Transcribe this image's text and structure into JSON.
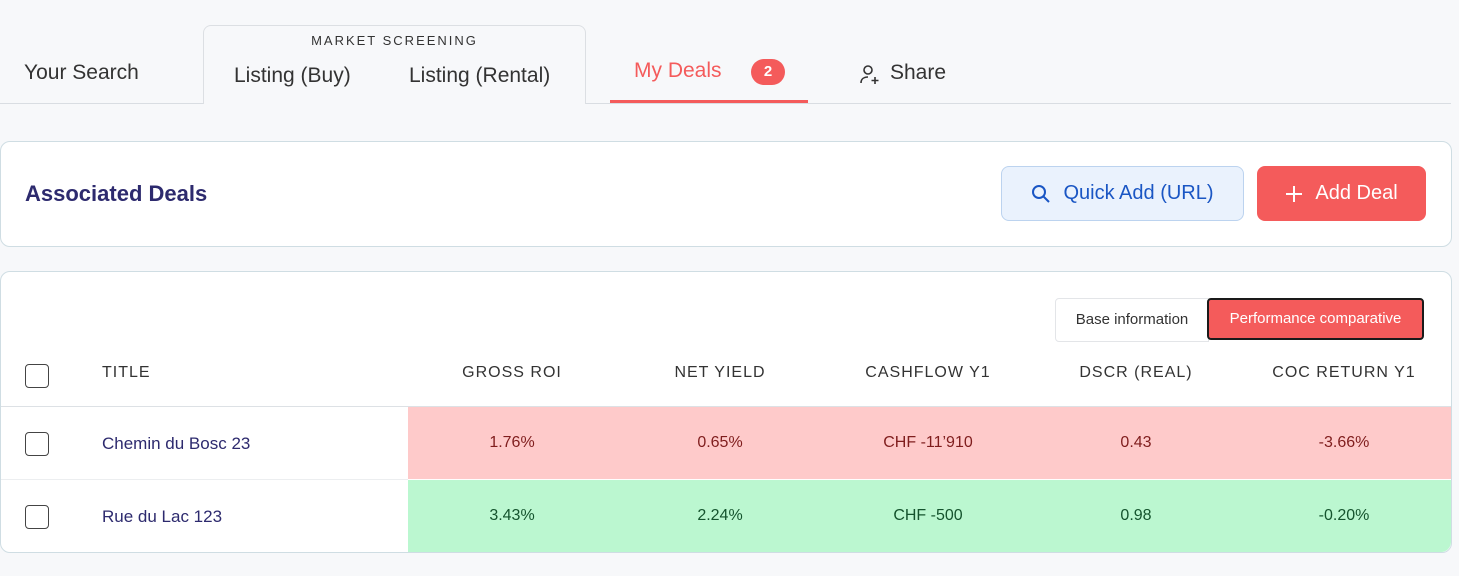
{
  "tabs": {
    "your_search": "Your Search",
    "group_label": "MARKET SCREENING",
    "listing_buy": "Listing (Buy)",
    "listing_rental": "Listing (Rental)",
    "my_deals": "My Deals",
    "my_deals_badge": "2",
    "share": "Share"
  },
  "header": {
    "title": "Associated Deals",
    "quick_add": "Quick Add (URL)",
    "add_deal": "Add Deal"
  },
  "toggle": {
    "base": "Base information",
    "performance": "Performance comparative"
  },
  "table": {
    "columns": [
      "TITLE",
      "GROSS ROI",
      "NET YIELD",
      "CASHFLOW Y1",
      "DSCR (REAL)",
      "COC RETURN Y1"
    ],
    "rows": [
      [
        "Chemin du Bosc 23",
        "1.76%",
        "0.65%",
        "CHF -11’910",
        "0.43",
        "-3.66%"
      ],
      [
        "Rue du Lac 123",
        "3.43%",
        "2.24%",
        "CHF -500",
        "0.98",
        "-0.20%"
      ]
    ]
  }
}
